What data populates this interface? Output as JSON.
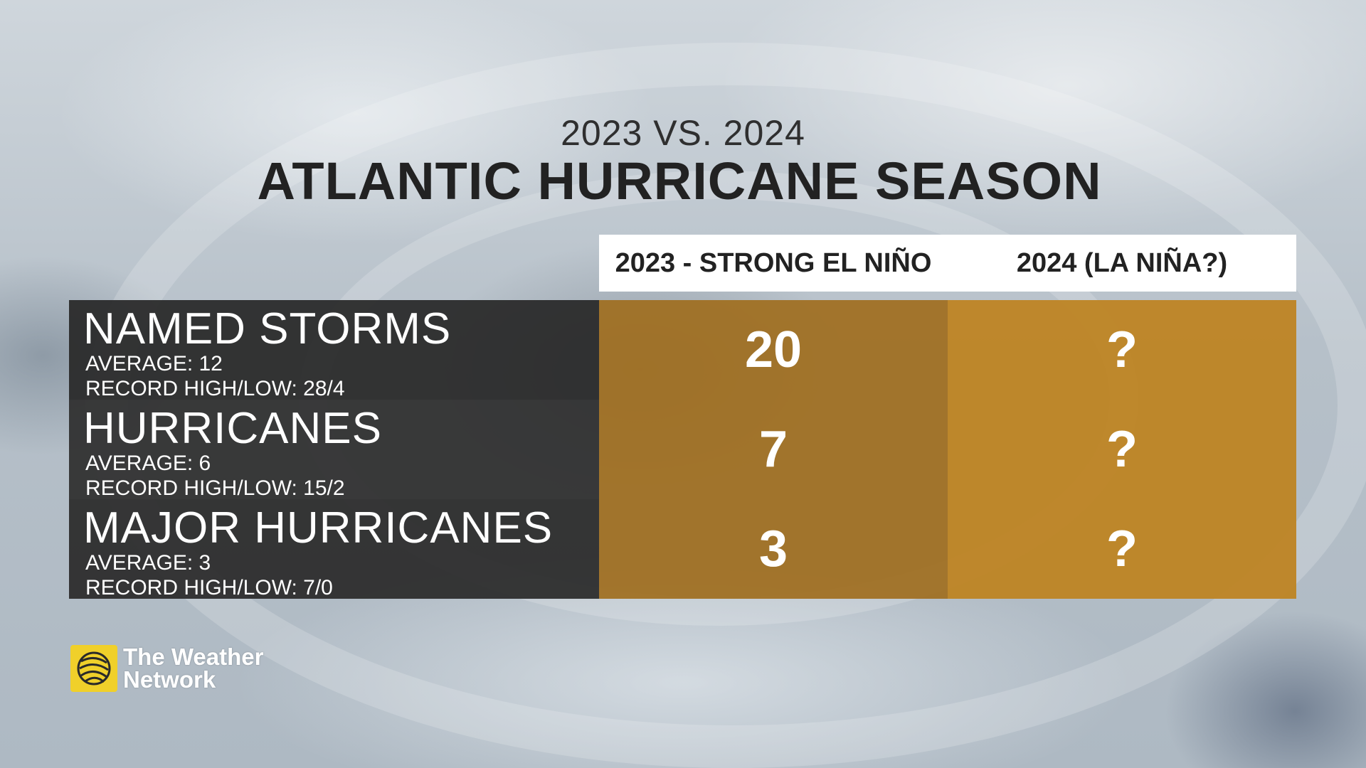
{
  "header": {
    "subtitle": "2023 VS. 2024",
    "title": "ATLANTIC HURRICANE SEASON"
  },
  "columns": [
    "2023 - STRONG EL NIÑO",
    "2024 (LA NIÑA?)"
  ],
  "rows": [
    {
      "name": "NAMED STORMS",
      "average": "AVERAGE: 12",
      "record": "RECORD HIGH/LOW: 28/4",
      "value_2023": "20",
      "value_2024": "?"
    },
    {
      "name": "HURRICANES",
      "average": "AVERAGE: 6",
      "record": "RECORD HIGH/LOW: 15/2",
      "value_2023": "7",
      "value_2024": "?"
    },
    {
      "name": "MAJOR HURRICANES",
      "average": "AVERAGE: 3",
      "record": "RECORD HIGH/LOW: 7/0",
      "value_2023": "3",
      "value_2024": "?"
    }
  ],
  "logo": {
    "line1": "The Weather",
    "line2": "Network",
    "icon": "globe-swirl-icon"
  },
  "colors": {
    "accent_2023": "#a06e1e",
    "accent_2024": "#be8423",
    "label_bg": "#2a2a2a",
    "logo_yellow": "#f0d02a"
  }
}
